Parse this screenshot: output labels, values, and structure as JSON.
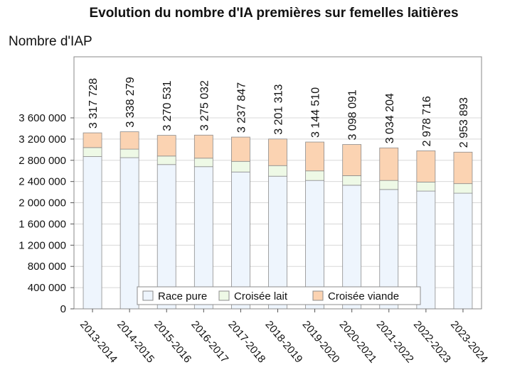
{
  "chart_data": {
    "type": "bar",
    "stacked": true,
    "title": "Evolution du nombre d'IA premières sur femelles laitières",
    "ylabel": "Nombre d'IAP",
    "xlabel": "",
    "ylim": [
      0,
      3600000
    ],
    "yticks": [
      "0",
      "400 000",
      "800 000",
      "1 200 000",
      "1 600 000",
      "2 000 000",
      "2 400 000",
      "2 800 000",
      "3 200 000",
      "3 600 000"
    ],
    "categories": [
      "2013-2014",
      "2014-2015",
      "2015-2016",
      "2016-2017",
      "2017-2018",
      "2018-2019",
      "2019-2020",
      "2020-2021",
      "2021-2022",
      "2022-2023",
      "2023-2024"
    ],
    "series": [
      {
        "name": "Race pure",
        "color": "#eef5fd",
        "values": [
          2870000,
          2850000,
          2720000,
          2680000,
          2580000,
          2500000,
          2420000,
          2330000,
          2250000,
          2220000,
          2180000
        ]
      },
      {
        "name": "Croisée lait",
        "color": "#eef9e6",
        "values": [
          170000,
          160000,
          160000,
          160000,
          200000,
          200000,
          180000,
          180000,
          170000,
          170000,
          180000
        ]
      },
      {
        "name": "Croisée viande",
        "color": "#fbd3b2",
        "values": [
          277728,
          328279,
          390531,
          435032,
          457847,
          501313,
          544510,
          588091,
          614204,
          588716,
          593893
        ]
      }
    ],
    "totals": [
      "3 317 728",
      "3 338 279",
      "3 270 531",
      "3 275 032",
      "3 237 847",
      "3 201 313",
      "3 144 510",
      "3 098 091",
      "3 034 204",
      "2 978 716",
      "2 953 893"
    ],
    "grid": true,
    "legend": "bottom-center inside plot"
  }
}
